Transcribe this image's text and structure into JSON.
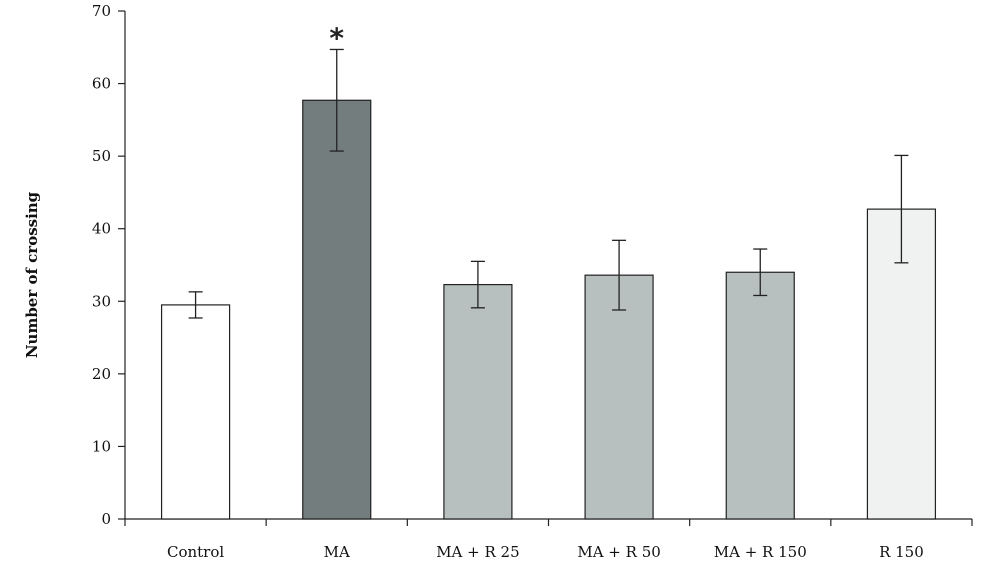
{
  "chart_data": {
    "type": "bar",
    "title": "",
    "xlabel": "",
    "ylabel": "Number of crossing",
    "ylim": [
      0,
      70
    ],
    "yticks": [
      0,
      10,
      20,
      30,
      40,
      50,
      60,
      70
    ],
    "grid": false,
    "categories": [
      "Control",
      "MA",
      "MA + R 25",
      "MA + R 50",
      "MA + R 150",
      "R 150"
    ],
    "values": [
      29.5,
      57.7,
      32.3,
      33.6,
      34.0,
      42.7
    ],
    "errors": [
      1.8,
      7.0,
      3.2,
      4.8,
      3.2,
      7.4
    ],
    "annotations": [
      {
        "category": "MA",
        "text": "*"
      }
    ],
    "colors": [
      "#ffffff",
      "#737d7e",
      "#b7c0be",
      "#b7c0be",
      "#b7c0be",
      "#eff2f0"
    ]
  }
}
